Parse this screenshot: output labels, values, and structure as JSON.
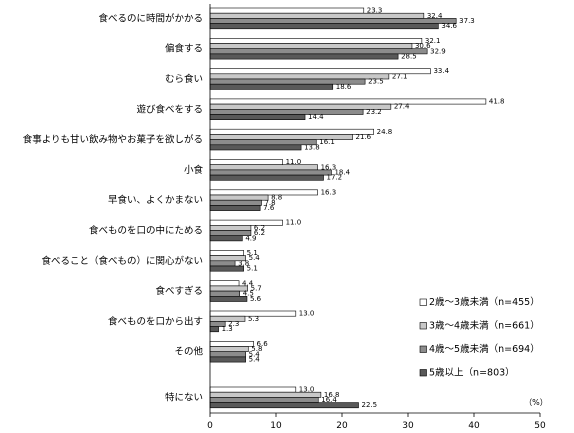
{
  "chart_data": {
    "type": "bar",
    "orientation": "horizontal",
    "categories": [
      "食べるのに時間がかかる",
      "偏食する",
      "むら食い",
      "遊び食べをする",
      "食事よりも甘い飲み物やお菓子を欲しがる",
      "小食",
      "早食い、よくかまない",
      "食べものを口の中にためる",
      "食べること（食べもの）に関心がない",
      "食べすぎる",
      "食べものを口から出す",
      "その他",
      "特にない"
    ],
    "series": [
      {
        "name": "2歳～3歳未満（n=455）",
        "color": "#ffffff",
        "values": [
          23.3,
          32.1,
          33.4,
          41.8,
          24.8,
          11.0,
          16.3,
          11.0,
          5.1,
          4.4,
          13.0,
          6.6,
          13.0
        ]
      },
      {
        "name": "3歳～4歳未満（n=661）",
        "color": "#c8c8c8",
        "values": [
          32.4,
          30.6,
          27.1,
          27.4,
          21.6,
          16.3,
          8.8,
          6.2,
          5.4,
          5.7,
          5.3,
          5.8,
          16.8
        ]
      },
      {
        "name": "4歳～5歳未満（n=694）",
        "color": "#8c8c8c",
        "values": [
          37.3,
          32.9,
          23.5,
          23.2,
          16.1,
          18.4,
          7.8,
          6.2,
          3.8,
          4.5,
          2.3,
          5.4,
          16.4
        ]
      },
      {
        "name": "5歳以上（n=803）",
        "color": "#595959",
        "values": [
          34.6,
          28.5,
          18.6,
          14.4,
          13.8,
          17.2,
          7.6,
          4.9,
          5.1,
          5.6,
          1.3,
          5.4,
          22.5
        ]
      }
    ],
    "value_labels": [
      [
        "23.3",
        "32.4",
        "37.3",
        "34.6"
      ],
      [
        "32.1",
        "30.6",
        "32.9",
        "28.5"
      ],
      [
        "33.4",
        "27.1",
        "23.5",
        "18.6"
      ],
      [
        "41.8",
        "27.4",
        "23.2",
        "14.4"
      ],
      [
        "24.8",
        "21.6",
        "16.1",
        "13.8"
      ],
      [
        "11.0",
        "16.3",
        "18.4",
        "17.2"
      ],
      [
        "16.3",
        "8.8",
        "7.8",
        "7.6"
      ],
      [
        "11.0",
        "6.2",
        "6.2",
        "4.9"
      ],
      [
        "5.1",
        "5.4",
        "3.8",
        "5.1"
      ],
      [
        "4.4",
        "5.7",
        "4.5",
        "5.6"
      ],
      [
        "13.0",
        "5.3",
        "2.3",
        "1.3"
      ],
      [
        "6.6",
        "5.8",
        "5.4",
        "5.4"
      ],
      [
        "13.0",
        "16.8",
        "16.4",
        "22.5"
      ]
    ],
    "xlim": [
      0,
      50
    ],
    "xticks": [
      "0",
      "10",
      "20",
      "30",
      "40",
      "50"
    ],
    "unit_label": "（%）",
    "legend_position": "right",
    "grid": false
  }
}
